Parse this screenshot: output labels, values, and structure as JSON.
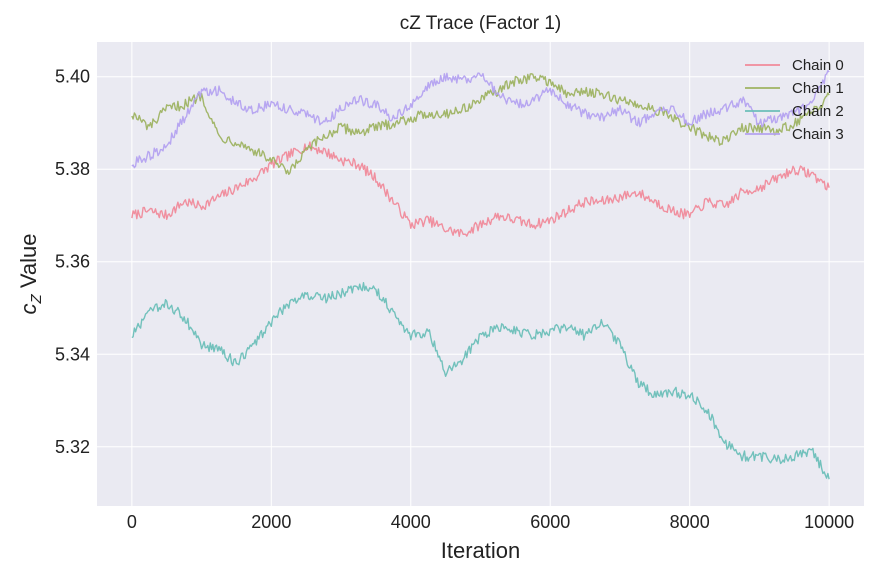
{
  "chart_data": {
    "type": "line",
    "title": "cZ Trace (Factor 1)",
    "xlabel": "Iteration",
    "ylabel_main": "c",
    "ylabel_sub": "Z",
    "ylabel_rest": " Value",
    "xlim": [
      -500,
      10500
    ],
    "ylim": [
      5.3072,
      5.4075
    ],
    "xticks": [
      0,
      2000,
      4000,
      6000,
      8000,
      10000
    ],
    "xtick_labels": [
      "0",
      "2000",
      "4000",
      "6000",
      "8000",
      "10000"
    ],
    "yticks": [
      5.32,
      5.34,
      5.36,
      5.38,
      5.4
    ],
    "ytick_labels": [
      "5.32",
      "5.34",
      "5.36",
      "5.38",
      "5.40"
    ],
    "grid": true,
    "legend_position": "top-right",
    "x": [
      0,
      250,
      500,
      750,
      1000,
      1250,
      1500,
      1750,
      2000,
      2250,
      2500,
      2750,
      3000,
      3250,
      3500,
      3750,
      4000,
      4250,
      4500,
      4750,
      5000,
      5250,
      5500,
      5750,
      6000,
      6250,
      6500,
      6750,
      7000,
      7250,
      7500,
      7750,
      8000,
      8250,
      8500,
      8750,
      9000,
      9250,
      9500,
      9750,
      10000
    ],
    "series": [
      {
        "name": "Chain 0",
        "color": "#f08a9a",
        "values": [
          5.37,
          5.371,
          5.37,
          5.373,
          5.372,
          5.374,
          5.376,
          5.378,
          5.381,
          5.383,
          5.385,
          5.384,
          5.382,
          5.381,
          5.378,
          5.373,
          5.368,
          5.369,
          5.367,
          5.366,
          5.368,
          5.37,
          5.369,
          5.368,
          5.369,
          5.371,
          5.373,
          5.373,
          5.374,
          5.375,
          5.373,
          5.371,
          5.37,
          5.373,
          5.372,
          5.375,
          5.376,
          5.378,
          5.38,
          5.379,
          5.376
        ]
      },
      {
        "name": "Chain 1",
        "color": "#9eb362",
        "values": [
          5.392,
          5.389,
          5.393,
          5.394,
          5.396,
          5.387,
          5.386,
          5.384,
          5.382,
          5.379,
          5.384,
          5.387,
          5.389,
          5.388,
          5.389,
          5.39,
          5.391,
          5.392,
          5.392,
          5.393,
          5.395,
          5.397,
          5.399,
          5.4,
          5.399,
          5.396,
          5.397,
          5.396,
          5.395,
          5.394,
          5.393,
          5.391,
          5.389,
          5.387,
          5.386,
          5.389,
          5.389,
          5.388,
          5.39,
          5.392,
          5.396
        ]
      },
      {
        "name": "Chain 2",
        "color": "#6bbfb8",
        "values": [
          5.344,
          5.349,
          5.351,
          5.348,
          5.342,
          5.341,
          5.338,
          5.342,
          5.347,
          5.351,
          5.353,
          5.352,
          5.353,
          5.355,
          5.354,
          5.349,
          5.344,
          5.345,
          5.336,
          5.339,
          5.344,
          5.346,
          5.345,
          5.344,
          5.345,
          5.346,
          5.344,
          5.347,
          5.342,
          5.334,
          5.331,
          5.332,
          5.331,
          5.328,
          5.321,
          5.318,
          5.318,
          5.317,
          5.318,
          5.319,
          5.313
        ]
      },
      {
        "name": "Chain 3",
        "color": "#b4a2f0",
        "values": [
          5.381,
          5.383,
          5.385,
          5.391,
          5.397,
          5.397,
          5.394,
          5.393,
          5.394,
          5.393,
          5.392,
          5.39,
          5.393,
          5.395,
          5.394,
          5.391,
          5.394,
          5.398,
          5.4,
          5.399,
          5.401,
          5.396,
          5.394,
          5.395,
          5.397,
          5.394,
          5.392,
          5.391,
          5.393,
          5.39,
          5.392,
          5.393,
          5.39,
          5.392,
          5.393,
          5.395,
          5.39,
          5.391,
          5.392,
          5.394,
          5.401
        ]
      }
    ]
  },
  "colors": {
    "plot_background": "#eaeaf2",
    "grid": "#ffffff",
    "text": "#222222"
  }
}
